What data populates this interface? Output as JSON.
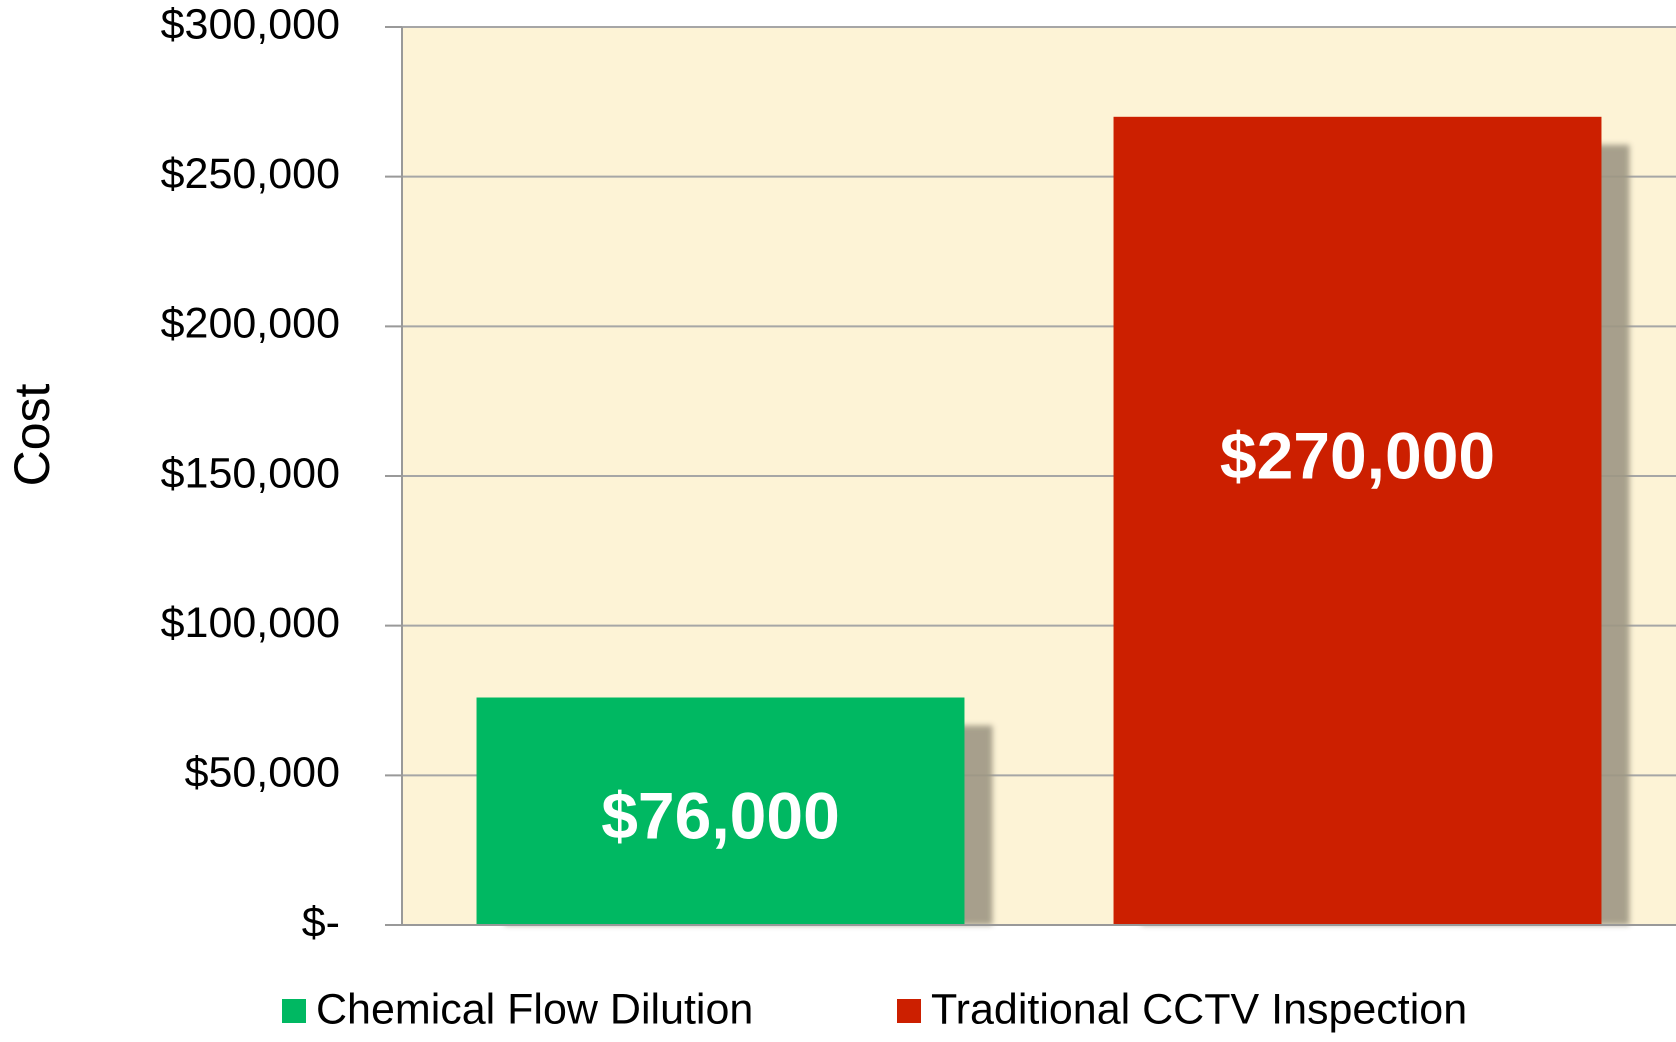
{
  "chart_data": {
    "type": "bar",
    "y_label": "Cost",
    "categories": [
      null
    ],
    "series": [
      {
        "name": "Chemical Flow Dilution",
        "color": "#00b862",
        "values": [
          76000
        ],
        "value_labels": [
          "$76,000"
        ]
      },
      {
        "name": "Traditional CCTV Inspection",
        "color": "#cc1f00",
        "values": [
          270000
        ],
        "value_labels": [
          "$270,000"
        ]
      }
    ],
    "ylim": [
      0,
      300000
    ],
    "yticks": [
      {
        "value": 0,
        "label": "$-"
      },
      {
        "value": 50000,
        "label": "$50,000"
      },
      {
        "value": 100000,
        "label": "$100,000"
      },
      {
        "value": 150000,
        "label": "$150,000"
      },
      {
        "value": 200000,
        "label": "$200,000"
      },
      {
        "value": 250000,
        "label": "$250,000"
      },
      {
        "value": 300000,
        "label": "$300,000"
      }
    ],
    "grid": true,
    "legend": "bottom",
    "plot_background": "#fdf3d6"
  }
}
